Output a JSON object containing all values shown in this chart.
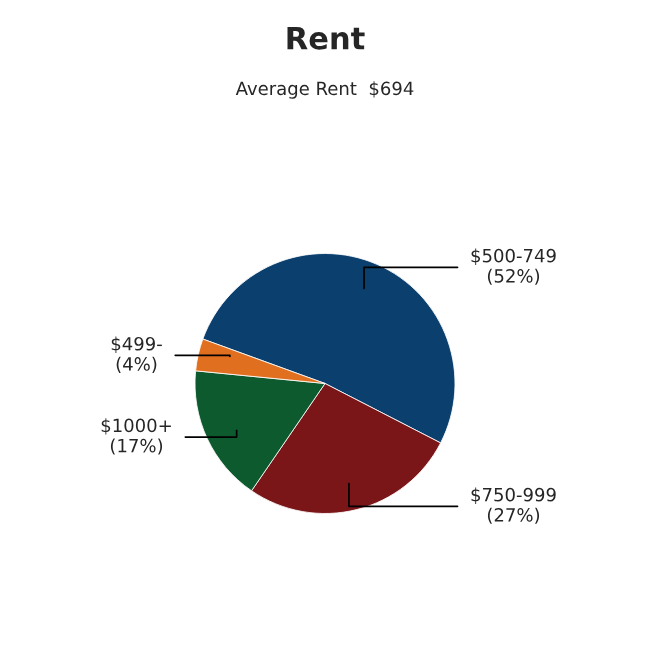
{
  "chart_data": {
    "type": "pie",
    "title": "Rent",
    "subtitle": "Average Rent  $694",
    "categories": [
      "$500-749",
      "$750-999",
      "$1000+",
      "$499-"
    ],
    "values": [
      52,
      27,
      17,
      4
    ],
    "value_labels": [
      "(52%)",
      "(27%)",
      "(17%)",
      "(4%)"
    ],
    "colors": [
      "#0b3f6e",
      "#7a1518",
      "#0e5a2f",
      "#e07020"
    ]
  }
}
